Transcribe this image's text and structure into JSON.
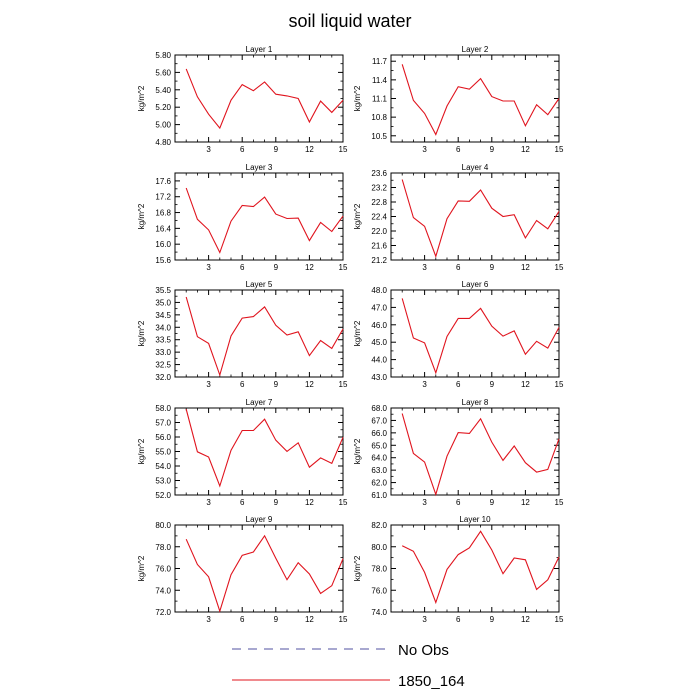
{
  "title": "soil liquid water",
  "legend": {
    "position": "bottom-center",
    "entries": [
      {
        "label": "No Obs",
        "color": "#5050a0",
        "dash": "dashed"
      },
      {
        "label": "1850_164",
        "color": "#e0141e",
        "dash": "solid"
      }
    ]
  },
  "chart_data": [
    {
      "type": "line",
      "title": "Layer 1",
      "ylabel": "kg/m^2",
      "xlim": [
        0,
        15
      ],
      "ylim": [
        4.8,
        5.8
      ],
      "xticks": [
        3,
        6,
        9,
        12,
        15
      ],
      "yticks": [
        "4.80",
        "5.00",
        "5.20",
        "5.40",
        "5.60",
        "5.80"
      ],
      "series": [
        {
          "name": "1850_164",
          "x": [
            1,
            2,
            3,
            4,
            5,
            6,
            7,
            8,
            9,
            10,
            11,
            12,
            13,
            14,
            15
          ],
          "values": [
            5.64,
            5.32,
            5.12,
            4.96,
            5.28,
            5.46,
            5.39,
            5.49,
            5.35,
            5.33,
            5.3,
            5.03,
            5.27,
            5.14,
            5.28
          ]
        }
      ]
    },
    {
      "type": "line",
      "title": "Layer 2",
      "ylabel": "kg/m^2",
      "xlim": [
        0,
        15
      ],
      "ylim": [
        10.4,
        11.8
      ],
      "xticks": [
        3,
        6,
        9,
        12,
        15
      ],
      "yticks": [
        "10.5",
        "10.8",
        "11.1",
        "11.4",
        "11.7"
      ],
      "series": [
        {
          "name": "1850_164",
          "x": [
            1,
            2,
            3,
            4,
            5,
            6,
            7,
            8,
            9,
            10,
            11,
            12,
            13,
            14,
            15
          ],
          "values": [
            11.65,
            11.07,
            10.86,
            10.52,
            10.98,
            11.29,
            11.25,
            11.42,
            11.13,
            11.06,
            11.06,
            10.66,
            11.0,
            10.84,
            11.1
          ]
        }
      ]
    },
    {
      "type": "line",
      "title": "Layer 3",
      "ylabel": "kg/m^2",
      "xlim": [
        0,
        15
      ],
      "ylim": [
        15.6,
        17.8
      ],
      "xticks": [
        3,
        6,
        9,
        12,
        15
      ],
      "yticks": [
        "15.6",
        "16.0",
        "16.4",
        "16.8",
        "17.2",
        "17.6"
      ],
      "series": [
        {
          "name": "1850_164",
          "x": [
            1,
            2,
            3,
            4,
            5,
            6,
            7,
            8,
            9,
            10,
            11,
            12,
            13,
            14,
            15
          ],
          "values": [
            17.42,
            16.63,
            16.36,
            15.79,
            16.58,
            16.98,
            16.95,
            17.19,
            16.76,
            16.65,
            16.66,
            16.09,
            16.55,
            16.32,
            16.71
          ]
        }
      ]
    },
    {
      "type": "line",
      "title": "Layer 4",
      "ylabel": "kg/m^2",
      "xlim": [
        0,
        15
      ],
      "ylim": [
        21.2,
        23.6
      ],
      "xticks": [
        3,
        6,
        9,
        12,
        15
      ],
      "yticks": [
        "21.2",
        "21.6",
        "22.0",
        "22.4",
        "22.8",
        "23.2",
        "23.6"
      ],
      "series": [
        {
          "name": "1850_164",
          "x": [
            1,
            2,
            3,
            4,
            5,
            6,
            7,
            8,
            9,
            10,
            11,
            12,
            13,
            14,
            15
          ],
          "values": [
            23.42,
            22.37,
            22.13,
            21.3,
            22.34,
            22.83,
            22.82,
            23.13,
            22.63,
            22.4,
            22.45,
            21.81,
            22.29,
            22.06,
            22.54
          ]
        }
      ]
    },
    {
      "type": "line",
      "title": "Layer 5",
      "ylabel": "kg/m^2",
      "xlim": [
        0,
        15
      ],
      "ylim": [
        32.0,
        35.5
      ],
      "xticks": [
        3,
        6,
        9,
        12,
        15
      ],
      "yticks": [
        "32.0",
        "32.5",
        "33.0",
        "33.5",
        "34.0",
        "34.5",
        "35.0",
        "35.5"
      ],
      "series": [
        {
          "name": "1850_164",
          "x": [
            1,
            2,
            3,
            4,
            5,
            6,
            7,
            8,
            9,
            10,
            11,
            12,
            13,
            14,
            15
          ],
          "values": [
            35.22,
            33.62,
            33.35,
            32.08,
            33.65,
            34.37,
            34.43,
            34.82,
            34.08,
            33.69,
            33.82,
            32.86,
            33.47,
            33.15,
            33.93
          ]
        }
      ]
    },
    {
      "type": "line",
      "title": "Layer 6",
      "ylabel": "kg/m^2",
      "xlim": [
        0,
        15
      ],
      "ylim": [
        43.0,
        48.0
      ],
      "xticks": [
        3,
        6,
        9,
        12,
        15
      ],
      "yticks": [
        "43.0",
        "44.0",
        "45.0",
        "46.0",
        "47.0",
        "48.0"
      ],
      "series": [
        {
          "name": "1850_164",
          "x": [
            1,
            2,
            3,
            4,
            5,
            6,
            7,
            8,
            9,
            10,
            11,
            12,
            13,
            14,
            15
          ],
          "values": [
            47.52,
            45.24,
            44.96,
            43.24,
            45.33,
            46.37,
            46.37,
            46.94,
            45.92,
            45.35,
            45.65,
            44.31,
            45.05,
            44.66,
            45.85
          ]
        }
      ]
    },
    {
      "type": "line",
      "title": "Layer 7",
      "ylabel": "kg/m^2",
      "xlim": [
        0,
        15
      ],
      "ylim": [
        52.0,
        58.0
      ],
      "xticks": [
        3,
        6,
        9,
        12,
        15
      ],
      "yticks": [
        "52.0",
        "53.0",
        "54.0",
        "55.0",
        "56.0",
        "57.0",
        "58.0"
      ],
      "series": [
        {
          "name": "1850_164",
          "x": [
            1,
            2,
            3,
            4,
            5,
            6,
            7,
            8,
            9,
            10,
            11,
            12,
            13,
            14,
            15
          ],
          "values": [
            57.92,
            54.98,
            54.62,
            52.62,
            55.08,
            56.45,
            56.45,
            57.23,
            55.78,
            55.01,
            55.6,
            53.92,
            54.56,
            54.18,
            55.98
          ]
        }
      ]
    },
    {
      "type": "line",
      "title": "Layer 8",
      "ylabel": "kg/m^2",
      "xlim": [
        0,
        15
      ],
      "ylim": [
        61.0,
        68.0
      ],
      "xticks": [
        3,
        6,
        9,
        12,
        15
      ],
      "yticks": [
        "61.0",
        "62.0",
        "63.0",
        "64.0",
        "65.0",
        "66.0",
        "67.0",
        "68.0"
      ],
      "series": [
        {
          "name": "1850_164",
          "x": [
            1,
            2,
            3,
            4,
            5,
            6,
            7,
            8,
            9,
            10,
            11,
            12,
            13,
            14,
            15
          ],
          "values": [
            67.56,
            64.35,
            63.65,
            61.05,
            64.12,
            66.02,
            65.96,
            67.13,
            65.26,
            63.78,
            64.94,
            63.6,
            62.84,
            63.06,
            65.52
          ]
        }
      ]
    },
    {
      "type": "line",
      "title": "Layer 9",
      "ylabel": "kg/m^2",
      "xlim": [
        0,
        15
      ],
      "ylim": [
        72.0,
        80.0
      ],
      "xticks": [
        3,
        6,
        9,
        12,
        15
      ],
      "yticks": [
        "72.0",
        "74.0",
        "76.0",
        "78.0",
        "80.0"
      ],
      "series": [
        {
          "name": "1850_164",
          "x": [
            1,
            2,
            3,
            4,
            5,
            6,
            7,
            8,
            9,
            10,
            11,
            12,
            13,
            14,
            15
          ],
          "values": [
            78.69,
            76.37,
            75.24,
            72.07,
            75.43,
            77.21,
            77.52,
            79.01,
            76.94,
            74.97,
            76.53,
            75.49,
            73.71,
            74.42,
            76.9
          ]
        }
      ]
    },
    {
      "type": "line",
      "title": "Layer 10",
      "ylabel": "kg/m^2",
      "xlim": [
        0,
        15
      ],
      "ylim": [
        74.0,
        82.0
      ],
      "xticks": [
        3,
        6,
        9,
        12,
        15
      ],
      "yticks": [
        "74.0",
        "76.0",
        "78.0",
        "80.0",
        "82.0"
      ],
      "series": [
        {
          "name": "1850_164",
          "x": [
            1,
            2,
            3,
            4,
            5,
            6,
            7,
            8,
            9,
            10,
            11,
            12,
            13,
            14,
            15
          ],
          "values": [
            80.1,
            79.58,
            77.64,
            74.87,
            77.92,
            79.28,
            79.9,
            81.42,
            79.7,
            77.52,
            78.97,
            78.8,
            76.08,
            76.96,
            79.07
          ]
        }
      ]
    }
  ]
}
